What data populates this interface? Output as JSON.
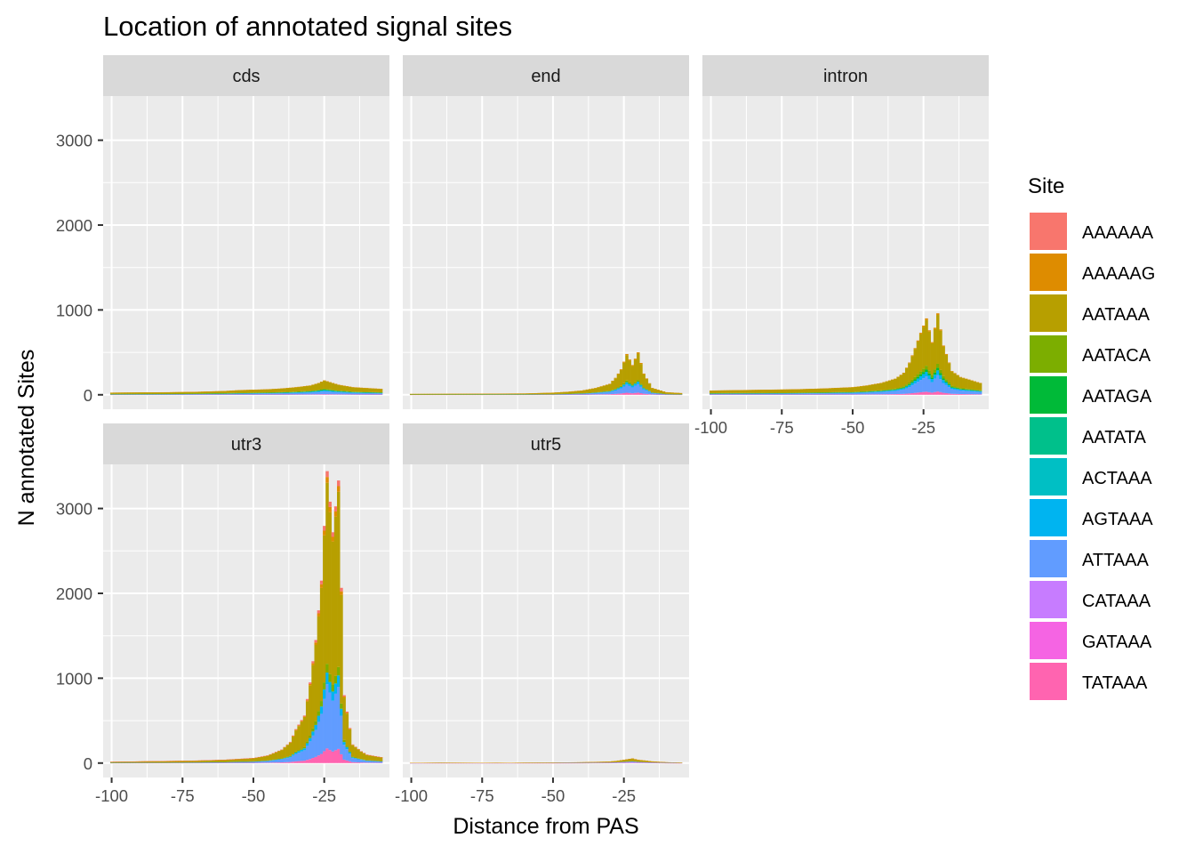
{
  "chart_data": {
    "type": "bar",
    "subtype": "stacked histogram, faceted",
    "title": "Location of annotated signal sites",
    "xlabel": "Distance from PAS",
    "ylabel": "N annotated Sites",
    "xlim": [
      -103,
      -2
    ],
    "ylim": [
      -170,
      3520
    ],
    "x_ticks": [
      -100,
      -75,
      -50,
      -25
    ],
    "x_tick_labels": [
      "-100",
      "-75",
      "-50",
      "-25"
    ],
    "y_ticks": [
      0,
      1000,
      2000,
      3000
    ],
    "y_tick_labels": [
      "0",
      "1000",
      "2000",
      "3000"
    ],
    "grid": true,
    "legend": {
      "title": "Site",
      "position": "right",
      "entries": [
        {
          "label": "AAAAAA",
          "color": "#F8766D"
        },
        {
          "label": "AAAAAG",
          "color": "#DE8C00"
        },
        {
          "label": "AATAAA",
          "color": "#B79F00"
        },
        {
          "label": "AATACA",
          "color": "#7CAE00"
        },
        {
          "label": "AATAGA",
          "color": "#00BA38"
        },
        {
          "label": "AATATA",
          "color": "#00C08B"
        },
        {
          "label": "ACTAAA",
          "color": "#00BFC4"
        },
        {
          "label": "AGTAAA",
          "color": "#00B4F0"
        },
        {
          "label": "ATTAAA",
          "color": "#619CFF"
        },
        {
          "label": "CATAAA",
          "color": "#C77CFF"
        },
        {
          "label": "GATAAA",
          "color": "#F564E3"
        },
        {
          "label": "TATAAA",
          "color": "#FF64B0"
        }
      ]
    },
    "facets": [
      {
        "name": "cds",
        "x": [
          -100,
          -90,
          -80,
          -70,
          -60,
          -55,
          -50,
          -45,
          -40,
          -35,
          -30,
          -27,
          -25,
          -23,
          -20,
          -15,
          -10,
          -5
        ],
        "values": [
          25,
          28,
          30,
          35,
          45,
          55,
          60,
          65,
          75,
          90,
          110,
          140,
          170,
          150,
          120,
          90,
          80,
          70
        ],
        "composition": {
          "AATAAA": 0.55,
          "ATTAAA": 0.2,
          "AGTAAA": 0.08,
          "AATACA": 0.06,
          "AATAGA": 0.04,
          "TATAAA": 0.04,
          "AAAAAG": 0.03
        }
      },
      {
        "name": "end",
        "x": [
          -100,
          -80,
          -60,
          -50,
          -45,
          -40,
          -35,
          -30,
          -28,
          -26,
          -24,
          -22,
          -20,
          -18,
          -15,
          -10,
          -5
        ],
        "values": [
          10,
          12,
          15,
          25,
          35,
          50,
          80,
          130,
          200,
          300,
          480,
          350,
          500,
          250,
          80,
          30,
          20
        ],
        "composition": {
          "AATAAA": 0.62,
          "ATTAAA": 0.2,
          "AGTAAA": 0.06,
          "AATACA": 0.04,
          "TATAAA": 0.05,
          "AAAAAG": 0.03
        }
      },
      {
        "name": "intron",
        "x": [
          -100,
          -90,
          -80,
          -70,
          -60,
          -50,
          -45,
          -40,
          -35,
          -32,
          -30,
          -28,
          -26,
          -24,
          -22,
          -20,
          -18,
          -15,
          -12,
          -10,
          -5
        ],
        "values": [
          50,
          55,
          60,
          65,
          75,
          90,
          110,
          140,
          190,
          260,
          380,
          550,
          730,
          900,
          620,
          960,
          580,
          280,
          210,
          190,
          140
        ],
        "composition": {
          "AATAAA": 0.6,
          "ATTAAA": 0.2,
          "AGTAAA": 0.06,
          "AATACA": 0.05,
          "AATAGA": 0.03,
          "TATAAA": 0.04,
          "AAAAAG": 0.02
        }
      },
      {
        "name": "utr3",
        "x": [
          -100,
          -90,
          -80,
          -70,
          -60,
          -50,
          -45,
          -40,
          -37,
          -35,
          -32,
          -30,
          -28,
          -26,
          -24,
          -22,
          -20,
          -18,
          -15,
          -12,
          -10,
          -5
        ],
        "values": [
          15,
          20,
          25,
          30,
          40,
          60,
          90,
          160,
          250,
          400,
          560,
          950,
          1450,
          2150,
          3440,
          2720,
          3330,
          800,
          220,
          140,
          100,
          70
        ],
        "composition": {
          "AATAAA": 0.62,
          "ATTAAA": 0.22,
          "AGTAAA": 0.04,
          "AATACA": 0.03,
          "TATAAA": 0.05,
          "AAAAAA": 0.02,
          "AAAAAG": 0.02
        }
      },
      {
        "name": "utr5",
        "x": [
          -100,
          -90,
          -75,
          -70,
          -65,
          -60,
          -50,
          -45,
          -40,
          -35,
          -30,
          -28,
          -26,
          -24,
          -22,
          -20,
          -15,
          -10,
          -5
        ],
        "values": [
          2,
          5,
          3,
          4,
          3,
          5,
          6,
          8,
          10,
          14,
          18,
          25,
          35,
          45,
          55,
          40,
          20,
          10,
          5
        ],
        "composition": {
          "AATAAA": 0.55,
          "ATTAAA": 0.2,
          "AAAAAG": 0.1,
          "TATAAA": 0.08,
          "CATAAA": 0.07
        }
      }
    ]
  }
}
